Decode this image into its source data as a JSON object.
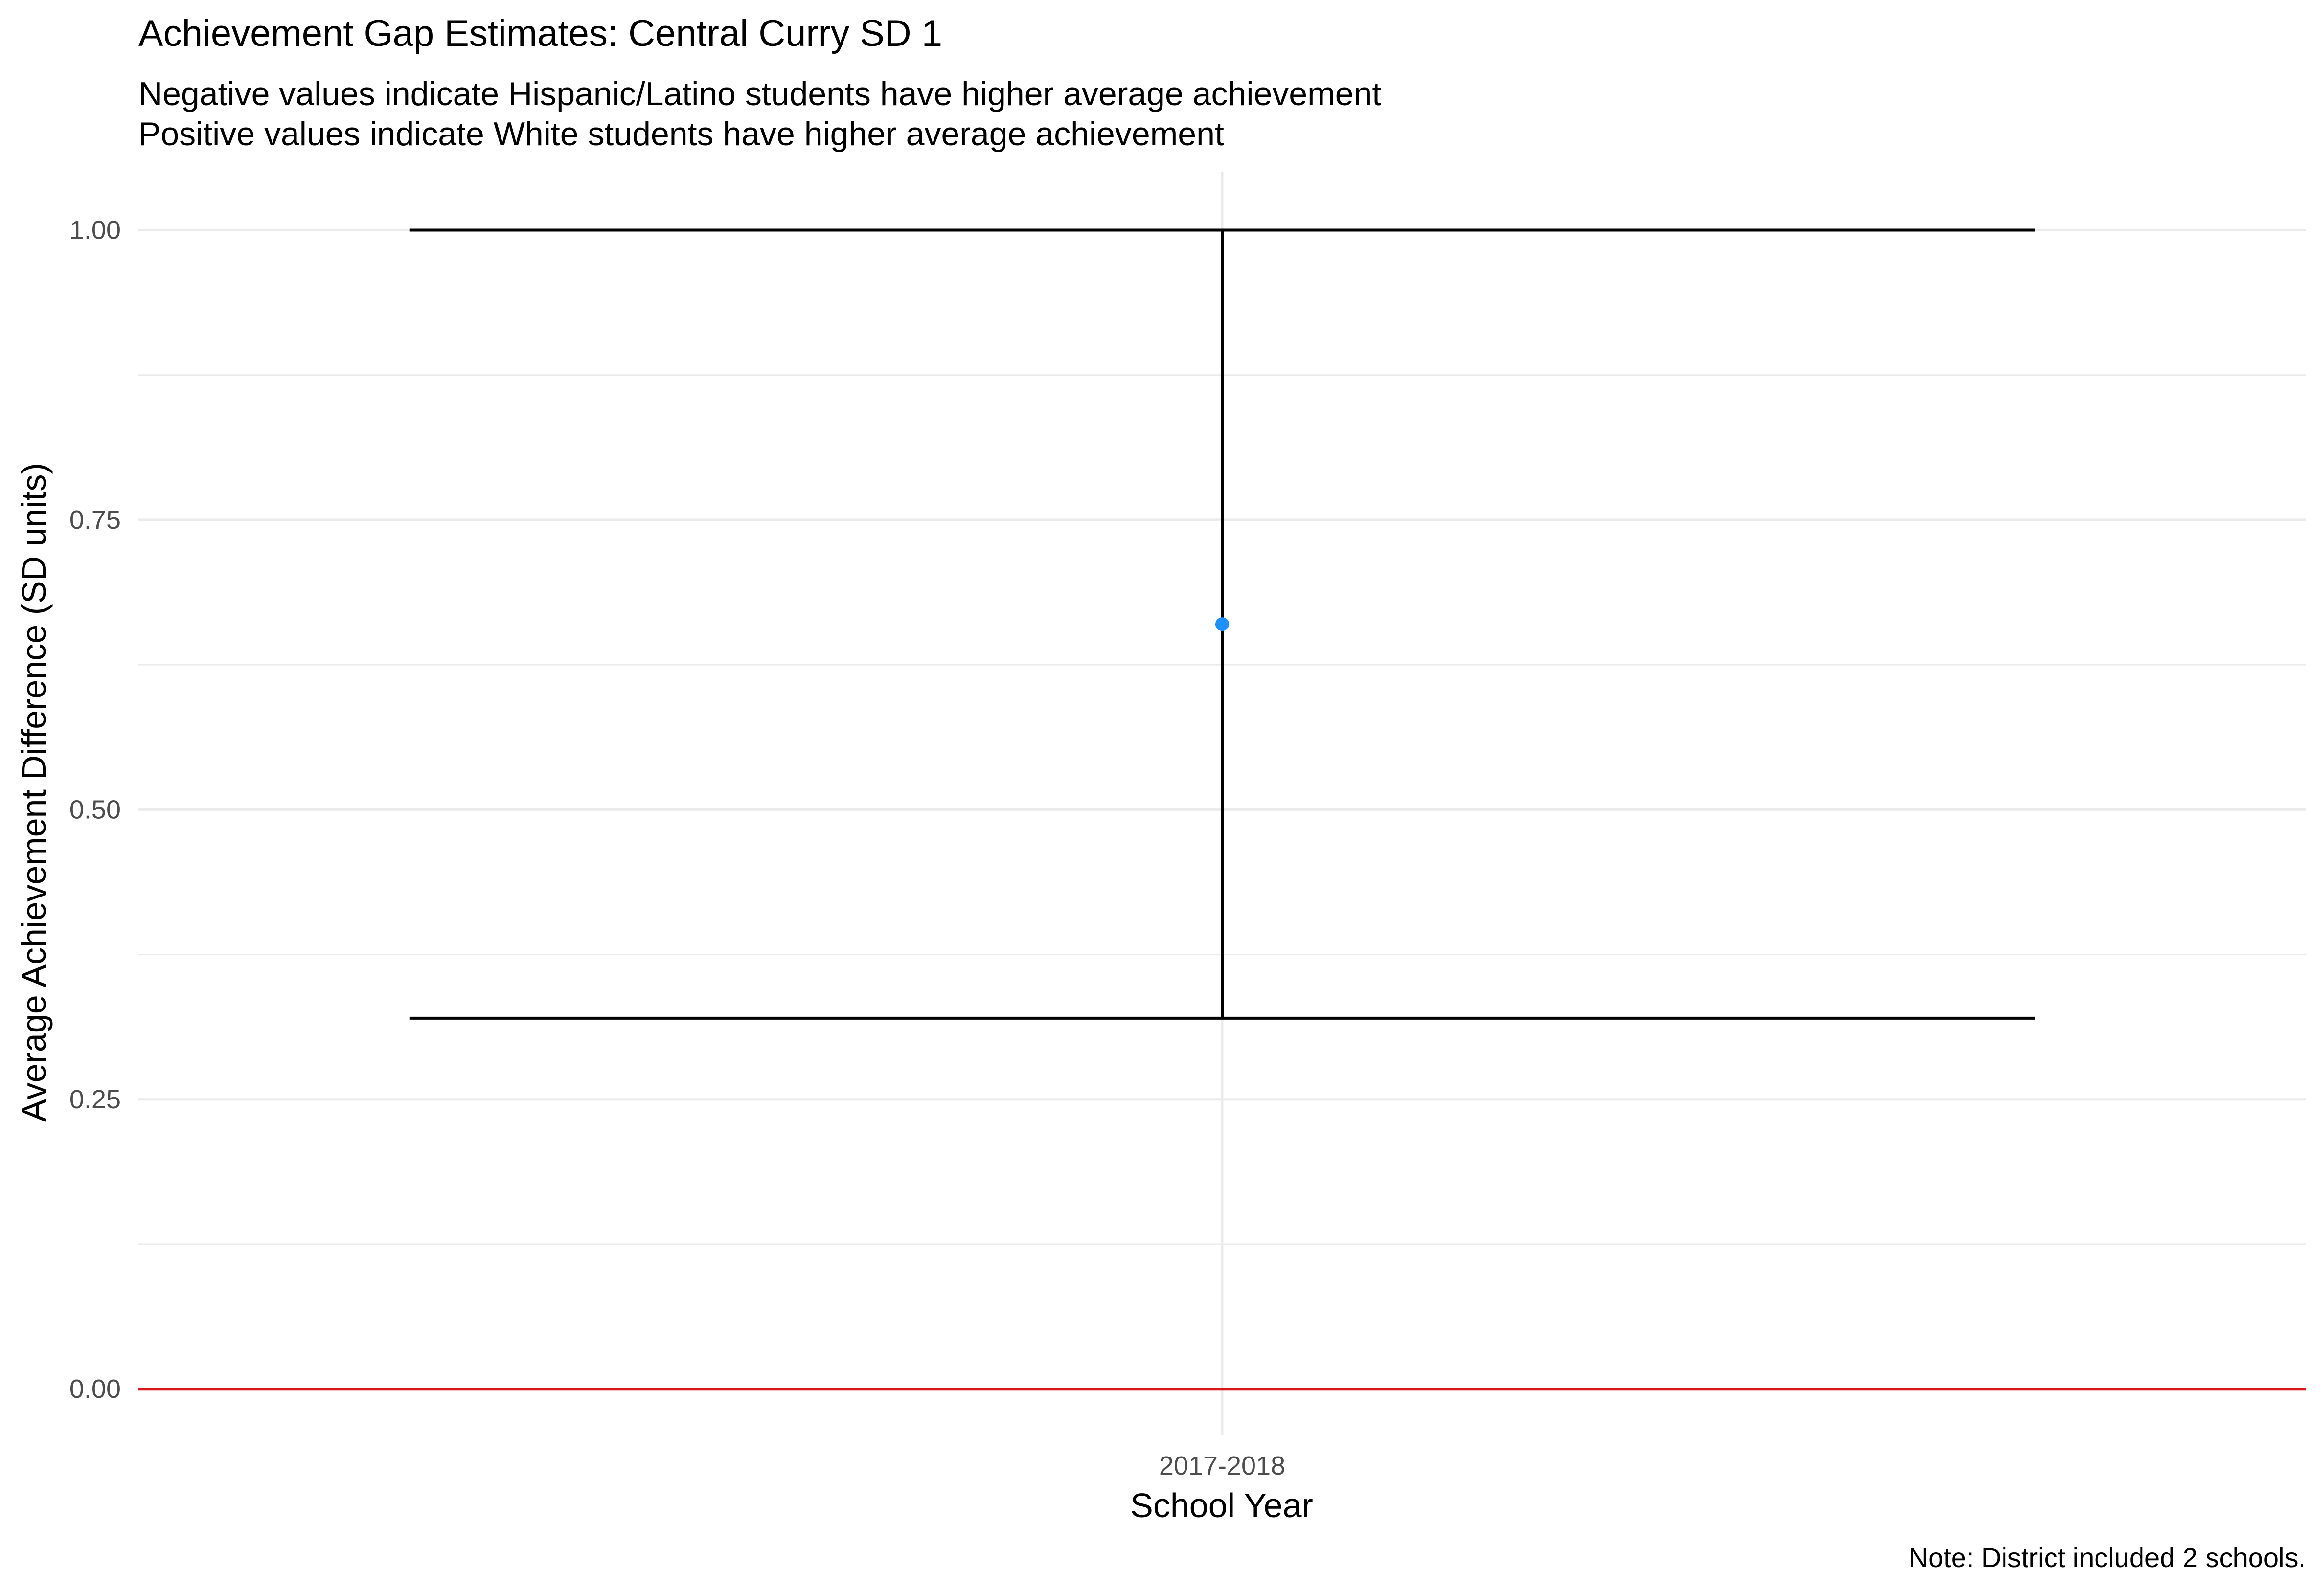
{
  "chart_data": {
    "type": "scatter",
    "title": "Achievement Gap Estimates: Central Curry SD 1",
    "subtitle_lines": [
      "Negative values indicate Hispanic/Latino students have higher average achievement",
      "Positive values indicate White students have higher average achievement"
    ],
    "xlabel": "School Year",
    "ylabel": "Average Achievement Difference (SD units)",
    "caption": "Note: District included 2 schools.",
    "categories": [
      "2017-2018"
    ],
    "points": [
      {
        "x": "2017-2018",
        "y": 0.66,
        "lower": 0.32,
        "upper": 1.0
      }
    ],
    "reference_line": {
      "y": 0,
      "color": "#d7191c"
    },
    "point_color": "#1e90ff",
    "errorbar_color": "#000000",
    "ylim": [
      -0.04,
      1.05
    ],
    "y_ticks": [
      0,
      0.25,
      0.5,
      0.75,
      1.0
    ],
    "y_tick_labels": [
      "0.00",
      "0.25",
      "0.50",
      "0.75",
      "1.00"
    ],
    "y_minor_ticks": [
      0.125,
      0.375,
      0.625,
      0.875
    ],
    "grid": true,
    "legend": "none"
  }
}
